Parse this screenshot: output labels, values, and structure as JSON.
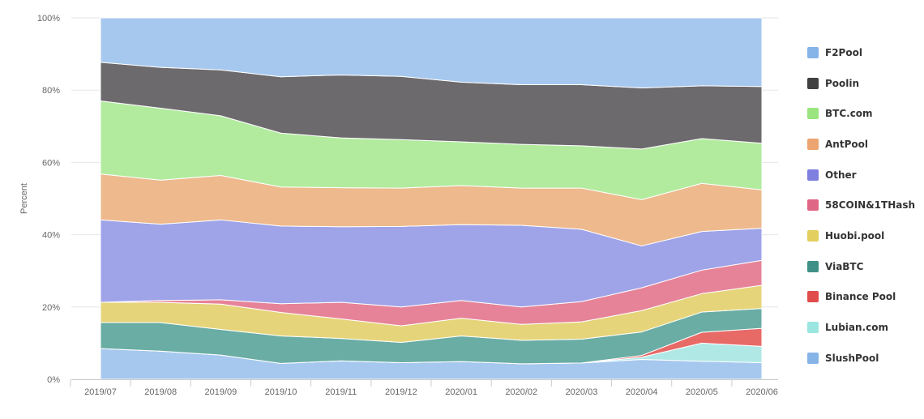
{
  "chart_data": {
    "type": "area",
    "stacked": true,
    "percent": true,
    "categories": [
      "2019/07",
      "2019/08",
      "2019/09",
      "2019/10",
      "2019/11",
      "2019/12",
      "2020/01",
      "2020/02",
      "2020/03",
      "2020/04",
      "2020/05",
      "2020/06"
    ],
    "ylabel": "Percent",
    "y_ticks": [
      "0%",
      "20%",
      "40%",
      "60%",
      "80%",
      "100%"
    ],
    "ylim": [
      0,
      100
    ],
    "grid": true,
    "legend_position": "right",
    "series": [
      {
        "name": "SlushPool",
        "color": "#a6c8ee",
        "values": [
          8.5,
          7.8,
          6.7,
          4.4,
          5.1,
          4.6,
          4.9,
          4.3,
          4.5,
          5.5,
          5.0,
          4.6
        ]
      },
      {
        "name": "Lubian.com",
        "color": "#b0e8e6",
        "values": [
          0,
          0,
          0,
          0,
          0,
          0,
          0,
          0,
          0,
          0.6,
          5.0,
          4.5
        ]
      },
      {
        "name": "Binance Pool",
        "color": "#e86a67",
        "values": [
          0,
          0,
          0,
          0,
          0,
          0,
          0,
          0,
          0,
          0.5,
          3.0,
          5.0
        ]
      },
      {
        "name": "ViaBTC",
        "color": "#6aada4",
        "values": [
          7.2,
          7.9,
          7.1,
          7.6,
          6.2,
          5.6,
          7.1,
          6.5,
          6.6,
          6.5,
          5.6,
          5.5
        ]
      },
      {
        "name": "Huobi.pool",
        "color": "#e6d47a",
        "values": [
          5.6,
          5.6,
          7.0,
          6.5,
          5.4,
          4.6,
          4.9,
          4.4,
          4.8,
          5.9,
          5.1,
          6.4
        ]
      },
      {
        "name": "58COIN&1THash",
        "color": "#e68398",
        "values": [
          0,
          0.5,
          1.2,
          2.4,
          4.6,
          5.2,
          4.9,
          4.8,
          5.6,
          6.3,
          6.5,
          6.9
        ]
      },
      {
        "name": "Other",
        "color": "#9fa3e8",
        "values": [
          22.8,
          21.1,
          22.1,
          21.5,
          20.9,
          22.3,
          21.0,
          22.6,
          20.0,
          11.6,
          10.7,
          8.9
        ]
      },
      {
        "name": "AntPool",
        "color": "#edb98d",
        "values": [
          12.7,
          12.2,
          12.3,
          10.8,
          10.8,
          10.6,
          10.8,
          10.3,
          11.4,
          12.8,
          13.3,
          10.6
        ]
      },
      {
        "name": "BTC.com",
        "color": "#b2eb9e",
        "values": [
          20.2,
          19.9,
          16.5,
          14.9,
          13.8,
          13.4,
          12.1,
          12.1,
          11.7,
          14.0,
          12.4,
          12.9
        ]
      },
      {
        "name": "Poolin",
        "color": "#6d6a6e",
        "values": [
          10.7,
          11.3,
          12.7,
          15.6,
          17.4,
          17.5,
          16.5,
          16.5,
          16.9,
          16.9,
          14.6,
          15.7
        ]
      },
      {
        "name": "F2Pool",
        "color": "#a6c8ee",
        "values": [
          12.3,
          13.7,
          14.4,
          16.3,
          15.8,
          16.2,
          17.8,
          18.5,
          18.5,
          19.4,
          18.8,
          19.0
        ]
      }
    ],
    "legend_order": [
      "F2Pool",
      "Poolin",
      "BTC.com",
      "AntPool",
      "Other",
      "58COIN&1THash",
      "Huobi.pool",
      "ViaBTC",
      "Binance Pool",
      "Lubian.com",
      "SlushPool"
    ],
    "legend_colors": {
      "F2Pool": "#86b4e8",
      "Poolin": "#404040",
      "BTC.com": "#9be580",
      "AntPool": "#eca470",
      "Other": "#7f7fe0",
      "58COIN&1THash": "#e06685",
      "Huobi.pool": "#e2cf60",
      "ViaBTC": "#3f9187",
      "Binance Pool": "#e04d4a",
      "Lubian.com": "#9be6e0",
      "SlushPool": "#86b4e8"
    }
  }
}
